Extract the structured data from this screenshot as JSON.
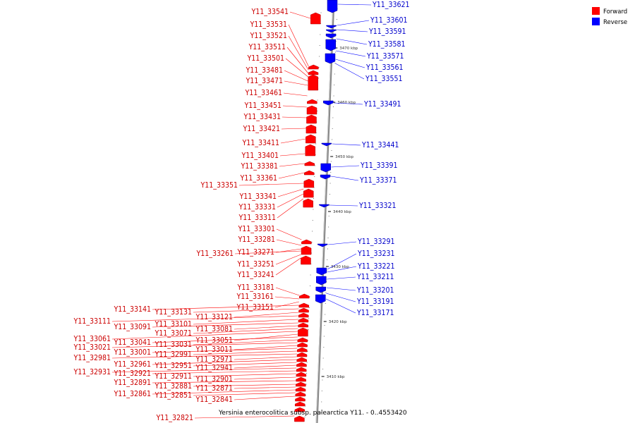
{
  "legend": [
    {
      "label": "Forward",
      "color": "#ff0000"
    },
    {
      "label": "Reverse",
      "color": "#0000ff"
    }
  ],
  "caption": "Yersinia enterocolitica subsp. palearctica Y11. - 0..4553420",
  "colors": {
    "forward_feature": "#ff0000",
    "reverse_feature": "#0000ff",
    "backbone": "#999999"
  },
  "ticks": [
    "3470 kbp",
    "3460 kbp",
    "3450 kbp",
    "3440 kbp",
    "3430 kbp",
    "3420 kbp",
    "3410 kbp"
  ],
  "forward_labels": [
    "Y11_33541",
    "Y11_33531",
    "Y11_33521",
    "Y11_33511",
    "Y11_33501",
    "Y11_33481",
    "Y11_33471",
    "Y11_33461",
    "Y11_33451",
    "Y11_33431",
    "Y11_33421",
    "Y11_33411",
    "Y11_33401",
    "Y11_33381",
    "Y11_33361",
    "Y11_33351",
    "Y11_33341",
    "Y11_33331",
    "Y11_33311",
    "Y11_33301",
    "Y11_33281",
    "Y11_33271",
    "Y11_33261",
    "Y11_33251",
    "Y11_33241",
    "Y11_33181",
    "Y11_33161",
    "Y11_33151",
    "Y11_33141",
    "Y11_33131",
    "Y11_33121",
    "Y11_33111",
    "Y11_33101",
    "Y11_33091",
    "Y11_33081",
    "Y11_33071",
    "Y11_33061",
    "Y11_33051",
    "Y11_33041",
    "Y11_33031",
    "Y11_33021",
    "Y11_33011",
    "Y11_33001",
    "Y11_32991",
    "Y11_32981",
    "Y11_32971",
    "Y11_32961",
    "Y11_32951",
    "Y11_32941",
    "Y11_32931",
    "Y11_32921",
    "Y11_32911",
    "Y11_32901",
    "Y11_32891",
    "Y11_32881",
    "Y11_32871",
    "Y11_32861",
    "Y11_32851",
    "Y11_32841",
    "Y11_32821"
  ],
  "reverse_labels": [
    "Y11_33621",
    "Y11_33601",
    "Y11_33591",
    "Y11_33581",
    "Y11_33571",
    "Y11_33561",
    "Y11_33551",
    "Y11_33491",
    "Y11_33441",
    "Y11_33391",
    "Y11_33371",
    "Y11_33321",
    "Y11_33291",
    "Y11_33231",
    "Y11_33221",
    "Y11_33211",
    "Y11_33201",
    "Y11_33191",
    "Y11_33171"
  ]
}
